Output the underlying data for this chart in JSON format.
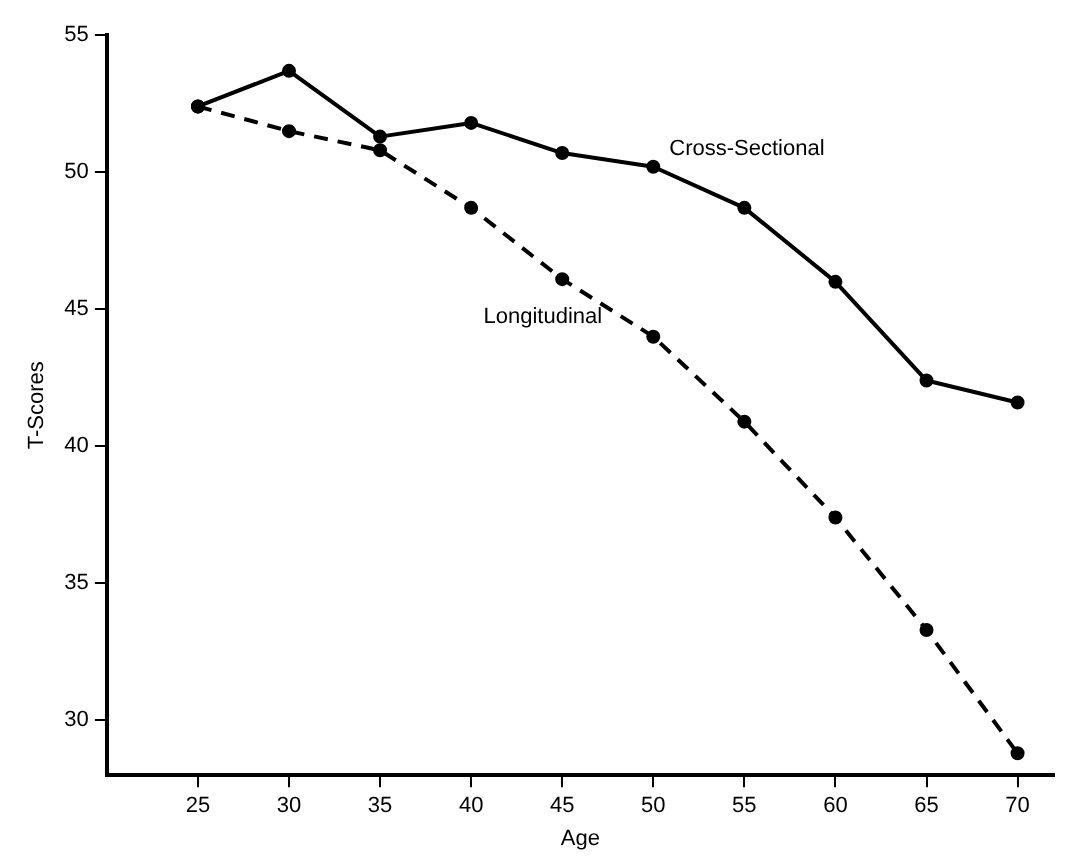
{
  "chart_data": {
    "type": "line",
    "xlabel": "Age",
    "ylabel": "T-Scores",
    "xlim": [
      20,
      72
    ],
    "xticks": [
      25,
      30,
      35,
      40,
      45,
      50,
      55,
      60,
      65,
      70
    ],
    "ylim": [
      28,
      55
    ],
    "yticks": [
      30,
      35,
      40,
      45,
      50,
      55
    ],
    "grid": false,
    "legend": false,
    "marker": "circle",
    "series": [
      {
        "name": "Cross-Sectional",
        "color": "#000000",
        "line_style": "solid",
        "x": [
          25,
          30,
          35,
          40,
          45,
          50,
          55,
          60,
          65,
          70
        ],
        "values": [
          52.4,
          53.7,
          51.3,
          51.8,
          50.7,
          50.2,
          48.7,
          46.0,
          42.4,
          41.6
        ]
      },
      {
        "name": "Longitudinal",
        "color": "#000000",
        "line_style": "dashed",
        "x": [
          25,
          30,
          35,
          40,
          45,
          50,
          55,
          60,
          65,
          70
        ],
        "values": [
          52.4,
          51.5,
          50.8,
          48.7,
          46.1,
          44.0,
          40.9,
          37.4,
          33.3,
          28.8
        ]
      }
    ]
  }
}
